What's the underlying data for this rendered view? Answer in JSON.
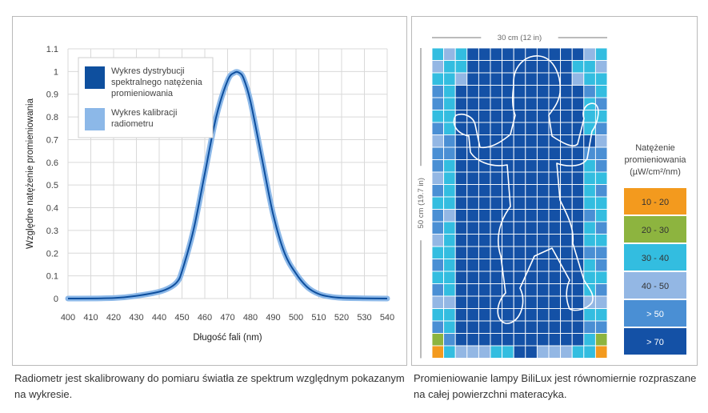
{
  "chart_data": [
    {
      "type": "line",
      "xlabel": "Długość fali (nm)",
      "ylabel": "Względne natężenie promieniowania",
      "xlim": [
        400,
        540
      ],
      "ylim": [
        0,
        1.1
      ],
      "x_ticks": [
        "400",
        "410",
        "420",
        "430",
        "440",
        "450",
        "460",
        "470",
        "480",
        "490",
        "500",
        "510",
        "520",
        "530",
        "540"
      ],
      "y_ticks": [
        "0",
        "0.1",
        "0.2",
        "0.3",
        "0.4",
        "0.5",
        "0.6",
        "0.7",
        "0.8",
        "0.9",
        "1",
        "1.1"
      ],
      "grid": true,
      "legend_position": "top-left",
      "series": [
        {
          "name": "Wykres dystrybucji spektralnego natężenia promieniowania",
          "color": "#0e4f9e",
          "x": [
            400,
            420,
            430,
            440,
            445,
            448,
            450,
            455,
            460,
            465,
            470,
            473,
            475,
            477,
            480,
            485,
            490,
            495,
            500,
            505,
            510,
            515,
            520,
            530,
            540
          ],
          "y": [
            0,
            0.002,
            0.012,
            0.03,
            0.05,
            0.075,
            0.12,
            0.3,
            0.55,
            0.8,
            0.96,
            0.995,
            0.995,
            0.97,
            0.87,
            0.62,
            0.37,
            0.2,
            0.11,
            0.05,
            0.02,
            0.008,
            0.003,
            0.001,
            0
          ]
        },
        {
          "name": "Wykres kalibracji radiometru",
          "color": "#8cb8e8",
          "x": [
            400,
            420,
            430,
            440,
            445,
            448,
            450,
            455,
            460,
            465,
            470,
            473,
            475,
            477,
            480,
            485,
            490,
            495,
            500,
            505,
            510,
            515,
            520,
            530,
            540
          ],
          "y": [
            0,
            0.002,
            0.012,
            0.03,
            0.05,
            0.075,
            0.12,
            0.3,
            0.55,
            0.8,
            0.96,
            0.995,
            0.995,
            0.97,
            0.87,
            0.62,
            0.37,
            0.2,
            0.11,
            0.05,
            0.02,
            0.008,
            0.003,
            0.001,
            0
          ]
        }
      ]
    },
    {
      "type": "heatmap",
      "width_label": "30 cm (12 in)",
      "height_label": "50 cm (19.7 in)",
      "columns": 15,
      "rows": 25,
      "legend_title": [
        "Natężenie",
        "promieniowania",
        "(µW/cm²/nm)"
      ],
      "legend": [
        {
          "label": "10 - 20",
          "color": "#f39a1e"
        },
        {
          "label": "20 - 30",
          "color": "#8db43f"
        },
        {
          "label": "30 - 40",
          "color": "#33bde0"
        },
        {
          "label": "40 - 50",
          "color": "#93b7e4"
        },
        {
          "label": "> 50",
          "color": "#4a8fd4"
        },
        {
          "label": "> 70",
          "color": "#1451a6"
        }
      ],
      "cells": [
        "232555555555532",
        "322555555555223",
        "223555555555322",
        "425555555555542",
        "425555555555524",
        "225555555555522",
        "425555555555524",
        "345555555555553",
        "445555555555544",
        "425555555555524",
        "325555555555522",
        "425555555555524",
        "225555555555522",
        "435555555555542",
        "425555555555524",
        "325555555555522",
        "225555555555544",
        "425555555555524",
        "225555555555522",
        "425555555555524",
        "335555555555533",
        "225555555555522",
        "425555555555544",
        "145555555555521",
        "023332255333220"
      ]
    }
  ],
  "captions": {
    "left": "Radiometr jest skalibrowany do pomiaru światła ze spektrum względnym pokazanym na wykresie.",
    "right": "Promieniowanie lampy BiliLux jest równomiernie rozpraszane na całej powierzchni materacyka."
  }
}
